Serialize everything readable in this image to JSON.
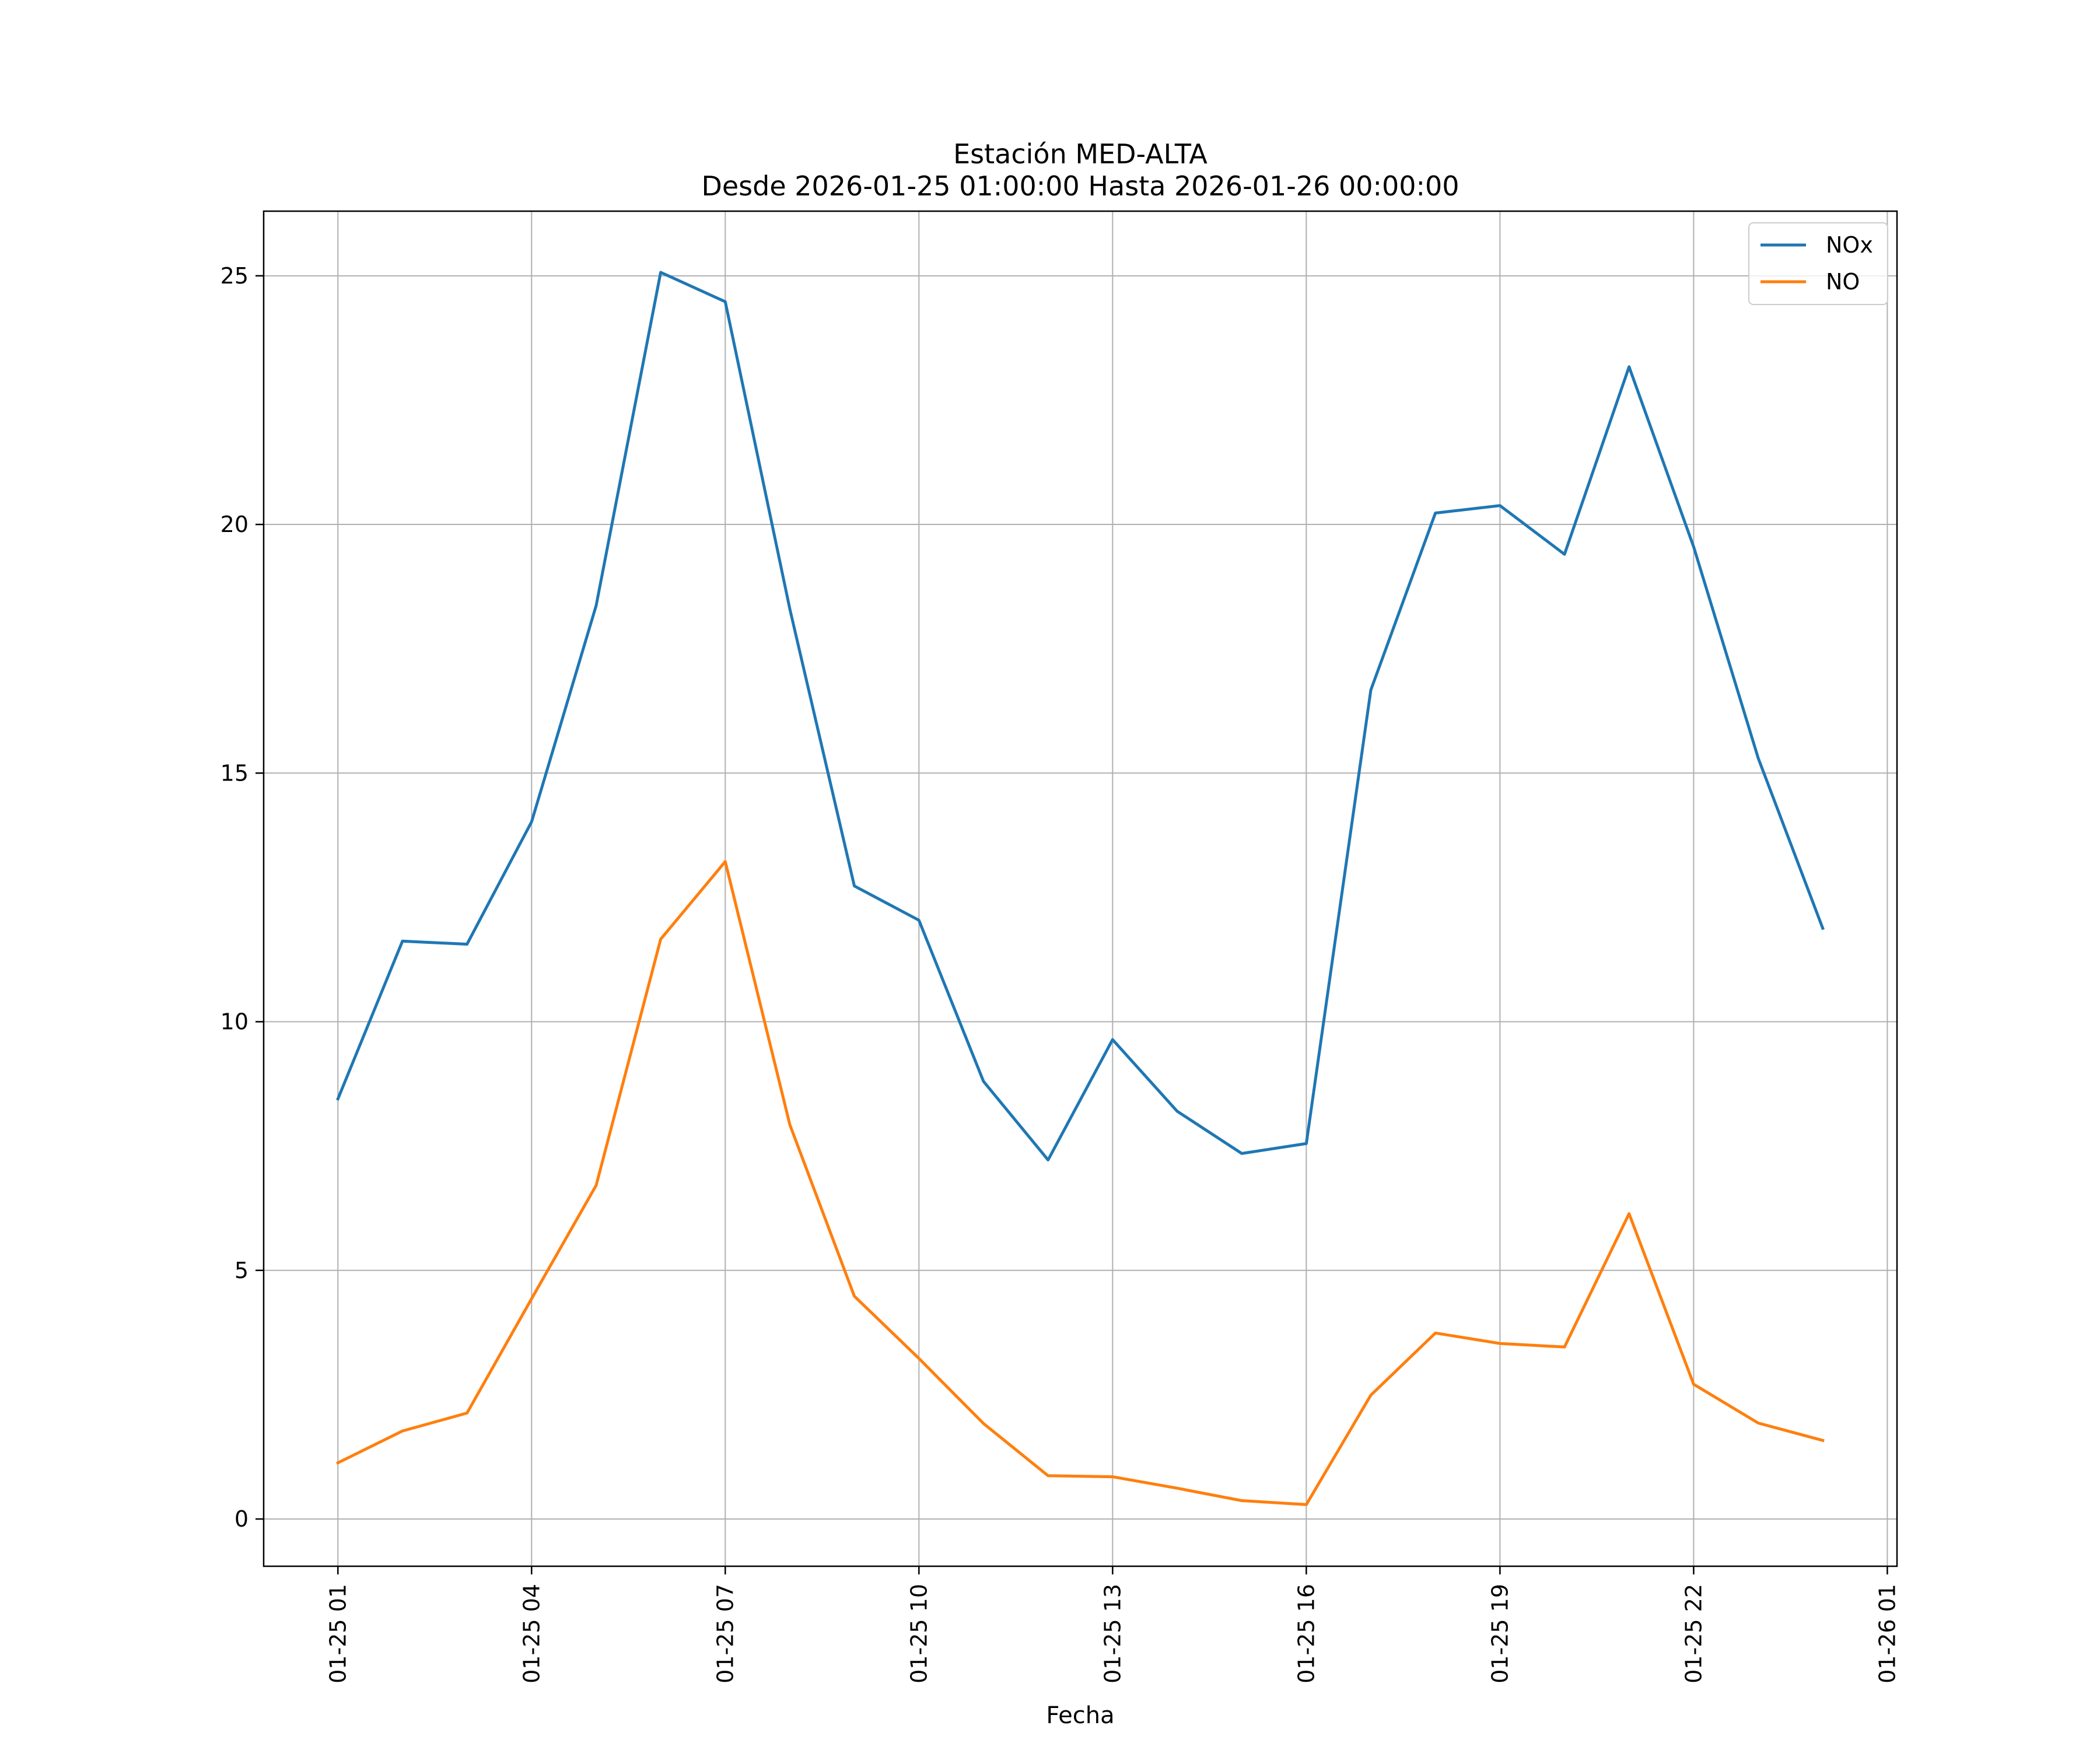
{
  "chart_data": {
    "type": "line",
    "title": "Estación MED-ALTA",
    "subtitle": "Desde 2026-01-25 01:00:00 Hasta 2026-01-26 00:00:00",
    "xlabel": "Fecha",
    "ylabel": "",
    "x": [
      "2026-01-25 01:00",
      "2026-01-25 02:00",
      "2026-01-25 03:00",
      "2026-01-25 04:00",
      "2026-01-25 05:00",
      "2026-01-25 06:00",
      "2026-01-25 07:00",
      "2026-01-25 08:00",
      "2026-01-25 09:00",
      "2026-01-25 10:00",
      "2026-01-25 11:00",
      "2026-01-25 12:00",
      "2026-01-25 13:00",
      "2026-01-25 14:00",
      "2026-01-25 15:00",
      "2026-01-25 16:00",
      "2026-01-25 17:00",
      "2026-01-25 18:00",
      "2026-01-25 19:00",
      "2026-01-25 20:00",
      "2026-01-25 21:00",
      "2026-01-25 22:00",
      "2026-01-25 23:00",
      "2026-01-26 00:00"
    ],
    "x_ticks": [
      "01-25 01",
      "01-25 04",
      "01-25 07",
      "01-25 10",
      "01-25 13",
      "01-25 16",
      "01-25 19",
      "01-25 22",
      "01-26 01"
    ],
    "x_tick_dates": [
      "2026-01-25 01:00",
      "2026-01-25 04:00",
      "2026-01-25 07:00",
      "2026-01-25 10:00",
      "2026-01-25 13:00",
      "2026-01-25 16:00",
      "2026-01-25 19:00",
      "2026-01-25 22:00",
      "2026-01-26 01:00"
    ],
    "xlim": [
      "2026-01-24 23:51",
      "2026-01-26 01:09"
    ],
    "y_ticks": [
      0,
      5,
      10,
      15,
      20,
      25
    ],
    "ylim": [
      -0.95,
      26.3
    ],
    "grid": true,
    "legend": "top-right",
    "series": [
      {
        "name": "NOx",
        "color": "#1f77b4",
        "values": [
          8.45,
          11.62,
          11.56,
          14.02,
          18.37,
          25.07,
          24.48,
          18.3,
          12.73,
          12.04,
          8.8,
          7.22,
          9.64,
          8.2,
          7.35,
          7.55,
          16.67,
          20.23,
          20.38,
          19.4,
          23.17,
          19.55,
          15.3,
          11.88
        ]
      },
      {
        "name": "NO",
        "color": "#ff7f0e",
        "values": [
          1.13,
          1.77,
          2.13,
          4.43,
          6.71,
          11.66,
          13.22,
          7.93,
          4.48,
          3.23,
          1.92,
          0.87,
          0.85,
          0.62,
          0.37,
          0.29,
          2.49,
          3.74,
          3.53,
          3.46,
          6.14,
          2.71,
          1.93,
          1.58
        ]
      }
    ]
  }
}
